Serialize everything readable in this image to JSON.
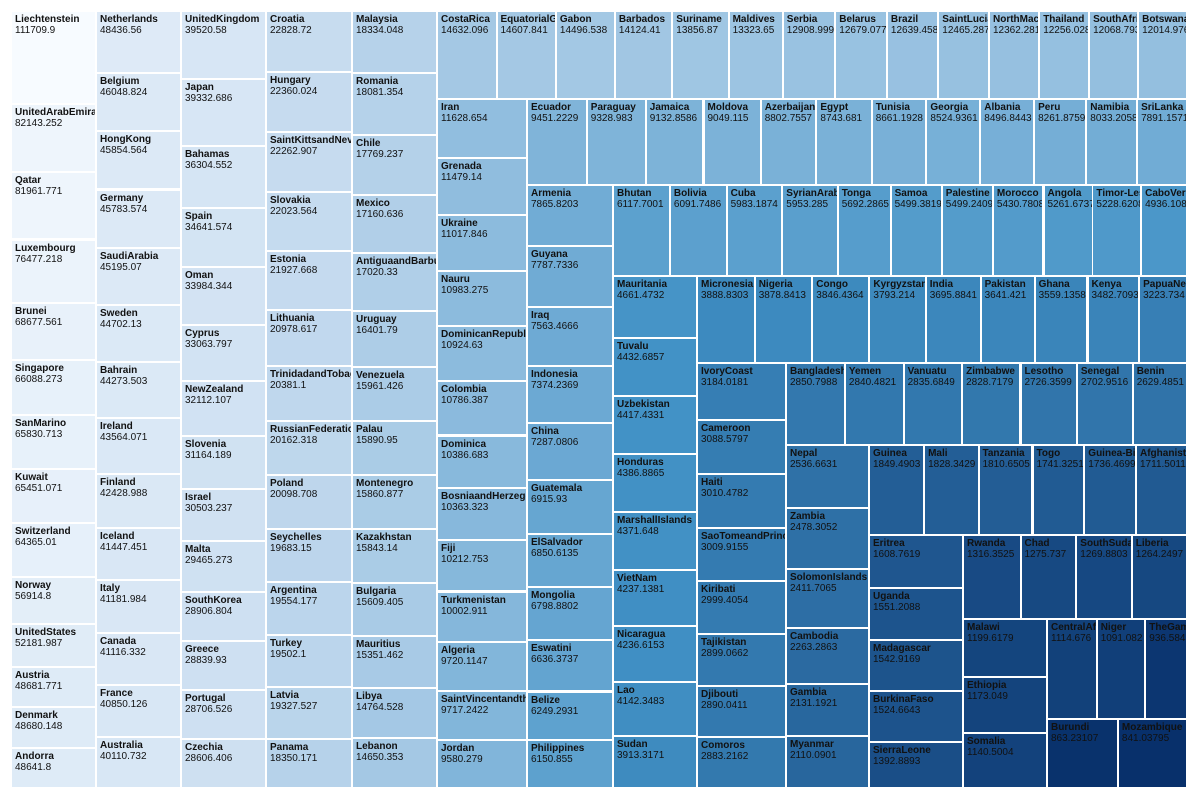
{
  "chart_data": {
    "type": "treemap",
    "color_scale": {
      "low": "#f7fbff",
      "high": "#08306b"
    },
    "items": [
      [
        "Liechtenstein",
        "111709.9"
      ],
      [
        "UnitedArabEmirates",
        "82143.252"
      ],
      [
        "Qatar",
        "81961.771"
      ],
      [
        "Luxembourg",
        "76477.218"
      ],
      [
        "Brunei",
        "68677.561"
      ],
      [
        "Singapore",
        "66088.273"
      ],
      [
        "SanMarino",
        "65830.713"
      ],
      [
        "Kuwait",
        "65451.071"
      ],
      [
        "Switzerland",
        "64365.01"
      ],
      [
        "Norway",
        "56914.8"
      ],
      [
        "UnitedStates",
        "52181.987"
      ],
      [
        "Austria",
        "48681.771"
      ],
      [
        "Denmark",
        "48680.148"
      ],
      [
        "Andorra",
        "48641.8"
      ],
      [
        "Netherlands",
        "48436.56"
      ],
      [
        "Belgium",
        "46048.824"
      ],
      [
        "HongKong",
        "45854.564"
      ],
      [
        "Germany",
        "45783.574"
      ],
      [
        "SaudiArabia",
        "45195.07"
      ],
      [
        "Sweden",
        "44702.13"
      ],
      [
        "Bahrain",
        "44273.503"
      ],
      [
        "Ireland",
        "43564.071"
      ],
      [
        "Finland",
        "42428.988"
      ],
      [
        "Iceland",
        "41447.451"
      ],
      [
        "Italy",
        "41181.984"
      ],
      [
        "Canada",
        "41116.332"
      ],
      [
        "France",
        "40850.126"
      ],
      [
        "Australia",
        "40110.732"
      ],
      [
        "UnitedKingdom",
        "39520.58"
      ],
      [
        "Japan",
        "39332.686"
      ],
      [
        "Bahamas",
        "36304.552"
      ],
      [
        "Spain",
        "34641.574"
      ],
      [
        "Oman",
        "33984.344"
      ],
      [
        "Cyprus",
        "33063.797"
      ],
      [
        "NewZealand",
        "32112.107"
      ],
      [
        "Slovenia",
        "31164.189"
      ],
      [
        "Israel",
        "30503.237"
      ],
      [
        "Malta",
        "29465.273"
      ],
      [
        "SouthKorea",
        "28906.804"
      ],
      [
        "Greece",
        "28839.93"
      ],
      [
        "Portugal",
        "28706.526"
      ],
      [
        "Czechia",
        "28606.406"
      ],
      [
        "Croatia",
        "22828.72"
      ],
      [
        "Hungary",
        "22360.024"
      ],
      [
        "SaintKittsandNevis",
        "22262.907"
      ],
      [
        "Slovakia",
        "22023.564"
      ],
      [
        "Estonia",
        "21927.668"
      ],
      [
        "Lithuania",
        "20978.617"
      ],
      [
        "TrinidadandTobago",
        "20381.1"
      ],
      [
        "RussianFederation",
        "20162.318"
      ],
      [
        "Poland",
        "20098.708"
      ],
      [
        "Seychelles",
        "19683.15"
      ],
      [
        "Argentina",
        "19554.177"
      ],
      [
        "Turkey",
        "19502.1"
      ],
      [
        "Latvia",
        "19327.527"
      ],
      [
        "Panama",
        "18350.171"
      ],
      [
        "Malaysia",
        "18334.048"
      ],
      [
        "Romania",
        "18081.354"
      ],
      [
        "Chile",
        "17769.237"
      ],
      [
        "Mexico",
        "17160.636"
      ],
      [
        "AntiguaandBarbuda",
        "17020.33"
      ],
      [
        "Uruguay",
        "16401.79"
      ],
      [
        "Venezuela",
        "15961.426"
      ],
      [
        "Palau",
        "15890.95"
      ],
      [
        "Montenegro",
        "15860.877"
      ],
      [
        "Kazakhstan",
        "15843.14"
      ],
      [
        "Bulgaria",
        "15609.405"
      ],
      [
        "Mauritius",
        "15351.462"
      ],
      [
        "Libya",
        "14764.528"
      ],
      [
        "Lebanon",
        "14650.353"
      ],
      [
        "CostaRica",
        "14632.096"
      ],
      [
        "EquatorialGuinea",
        "14607.841"
      ],
      [
        "Gabon",
        "14496.538"
      ],
      [
        "Barbados",
        "14124.41"
      ],
      [
        "Suriname",
        "13856.87"
      ],
      [
        "Maldives",
        "13323.65"
      ],
      [
        "Serbia",
        "12908.999"
      ],
      [
        "Belarus",
        "12679.077"
      ],
      [
        "Brazil",
        "12639.458"
      ],
      [
        "SaintLucia",
        "12465.287"
      ],
      [
        "NorthMacedonia",
        "12362.281"
      ],
      [
        "Thailand",
        "12256.028"
      ],
      [
        "SouthAfrica",
        "12068.793"
      ],
      [
        "Botswana",
        "12014.976"
      ],
      [
        "Iran",
        "11628.654"
      ],
      [
        "Grenada",
        "11479.14"
      ],
      [
        "Ukraine",
        "11017.846"
      ],
      [
        "Nauru",
        "10983.275"
      ],
      [
        "DominicanRepublic",
        "10924.63"
      ],
      [
        "Colombia",
        "10786.387"
      ],
      [
        "Dominica",
        "10386.683"
      ],
      [
        "BosniaandHerzegovina",
        "10363.323"
      ],
      [
        "Fiji",
        "10212.753"
      ],
      [
        "Turkmenistan",
        "10002.911"
      ],
      [
        "Algeria",
        "9720.1147"
      ],
      [
        "SaintVincentandtheGrenadines",
        "9717.2422"
      ],
      [
        "Jordan",
        "9580.279"
      ],
      [
        "Ecuador",
        "9451.2229"
      ],
      [
        "Paraguay",
        "9328.983"
      ],
      [
        "Jamaica",
        "9132.8586"
      ],
      [
        "Moldova",
        "9049.115"
      ],
      [
        "Azerbaijan",
        "8802.7557"
      ],
      [
        "Egypt",
        "8743.681"
      ],
      [
        "Tunisia",
        "8661.1928"
      ],
      [
        "Georgia",
        "8524.9361"
      ],
      [
        "Albania",
        "8496.8443"
      ],
      [
        "Peru",
        "8261.8759"
      ],
      [
        "Namibia",
        "8033.2058"
      ],
      [
        "SriLanka",
        "7891.1571"
      ],
      [
        "Armenia",
        "7865.8203"
      ],
      [
        "Guyana",
        "7787.7336"
      ],
      [
        "Iraq",
        "7563.4666"
      ],
      [
        "Indonesia",
        "7374.2369"
      ],
      [
        "China",
        "7287.0806"
      ],
      [
        "Guatemala",
        "6915.93"
      ],
      [
        "ElSalvador",
        "6850.6135"
      ],
      [
        "Mongolia",
        "6798.8802"
      ],
      [
        "Eswatini",
        "6636.3737"
      ],
      [
        "Belize",
        "6249.2931"
      ],
      [
        "Philippines",
        "6150.855"
      ],
      [
        "Bhutan",
        "6117.7001"
      ],
      [
        "Bolivia",
        "6091.7486"
      ],
      [
        "Cuba",
        "5983.1874"
      ],
      [
        "SyrianArabRepublic",
        "5953.285"
      ],
      [
        "Tonga",
        "5692.2865"
      ],
      [
        "Samoa",
        "5499.3819"
      ],
      [
        "Palestine",
        "5499.2409"
      ],
      [
        "Morocco",
        "5430.7808"
      ],
      [
        "Angola",
        "5261.6737"
      ],
      [
        "Timor-Leste",
        "5228.6208"
      ],
      [
        "CaboVerde",
        "4936.1085"
      ],
      [
        "Mauritania",
        "4661.4732"
      ],
      [
        "Tuvalu",
        "4432.6857"
      ],
      [
        "Uzbekistan",
        "4417.4331"
      ],
      [
        "Honduras",
        "4386.8865"
      ],
      [
        "MarshallIslands",
        "4371.648"
      ],
      [
        "VietNam",
        "4237.1381"
      ],
      [
        "Nicaragua",
        "4236.6153"
      ],
      [
        "Lao",
        "4142.3483"
      ],
      [
        "Sudan",
        "3913.3171"
      ],
      [
        "Micronesia",
        "3888.8303"
      ],
      [
        "Nigeria",
        "3878.8413"
      ],
      [
        "Congo",
        "3846.4364"
      ],
      [
        "Kyrgyzstan",
        "3793.214"
      ],
      [
        "India",
        "3695.8841"
      ],
      [
        "Pakistan",
        "3641.421"
      ],
      [
        "Ghana",
        "3559.1358"
      ],
      [
        "Kenya",
        "3482.7093"
      ],
      [
        "PapuaNewGuinea",
        "3223.734"
      ],
      [
        "IvoryCoast",
        "3184.0181"
      ],
      [
        "Cameroon",
        "3088.5797"
      ],
      [
        "Haiti",
        "3010.4782"
      ],
      [
        "SaoTomeandPrincipe",
        "3009.9155"
      ],
      [
        "Kiribati",
        "2999.4054"
      ],
      [
        "Tajikistan",
        "2899.0662"
      ],
      [
        "Djibouti",
        "2890.0411"
      ],
      [
        "Comoros",
        "2883.2162"
      ],
      [
        "Bangladesh",
        "2850.7988"
      ],
      [
        "Yemen",
        "2840.4821"
      ],
      [
        "Vanuatu",
        "2835.6849"
      ],
      [
        "Zimbabwe",
        "2828.7179"
      ],
      [
        "Lesotho",
        "2726.3599"
      ],
      [
        "Senegal",
        "2702.9516"
      ],
      [
        "Benin",
        "2629.4851"
      ],
      [
        "Nepal",
        "2536.6631"
      ],
      [
        "Zambia",
        "2478.3052"
      ],
      [
        "SolomonIslands",
        "2411.7065"
      ],
      [
        "Cambodia",
        "2263.2863"
      ],
      [
        "Gambia",
        "2131.1921"
      ],
      [
        "Myanmar",
        "2110.0901"
      ],
      [
        "Guinea",
        "1849.4903"
      ],
      [
        "Mali",
        "1828.3429"
      ],
      [
        "Tanzania",
        "1810.6505"
      ],
      [
        "Togo",
        "1741.3251"
      ],
      [
        "Guinea-Bissau",
        "1736.4699"
      ],
      [
        "Afghanistan",
        "1711.5011"
      ],
      [
        "Eritrea",
        "1608.7619"
      ],
      [
        "Uganda",
        "1551.2088"
      ],
      [
        "Madagascar",
        "1542.9169"
      ],
      [
        "BurkinaFaso",
        "1524.6643"
      ],
      [
        "SierraLeone",
        "1392.8893"
      ],
      [
        "Rwanda",
        "1316.3525"
      ],
      [
        "Chad",
        "1275.737"
      ],
      [
        "SouthSudan",
        "1269.8803"
      ],
      [
        "Liberia",
        "1264.2497"
      ],
      [
        "Malawi",
        "1199.6179"
      ],
      [
        "Ethiopia",
        "1173.049"
      ],
      [
        "Somalia",
        "1140.5004"
      ],
      [
        "CentralAfricanRepublic",
        "1114.676"
      ],
      [
        "Niger",
        "1091.082"
      ],
      [
        "TheGambia",
        "936.5842"
      ],
      [
        "Burundi",
        "863.23107"
      ],
      [
        "Mozambique",
        "841.03795"
      ]
    ]
  }
}
